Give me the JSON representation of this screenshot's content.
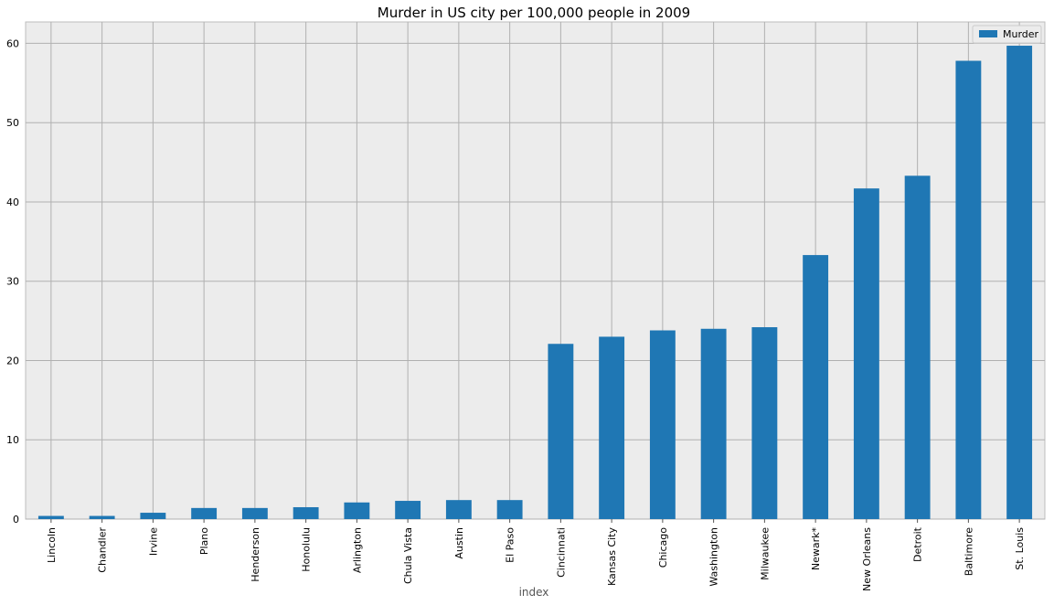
{
  "chart_data": {
    "type": "bar",
    "title": "Murder in US city per 100,000 people in 2009",
    "xlabel": "index",
    "ylabel": "",
    "categories": [
      "Lincoln",
      "Chandler",
      "Irvine",
      "Plano",
      "Henderson",
      "Honolulu",
      "Arlington",
      "Chula Vista",
      "Austin",
      "El Paso",
      "Cincinnati",
      "Kansas City",
      "Chicago",
      "Washington",
      "Milwaukee",
      "Newark*",
      "New Orleans",
      "Detroit",
      "Baltimore",
      "St. Louis"
    ],
    "series": [
      {
        "name": "Murder",
        "color": "#1f77b4",
        "values": [
          0.4,
          0.4,
          0.8,
          1.4,
          1.4,
          1.5,
          2.1,
          2.3,
          2.4,
          2.4,
          22.1,
          23.0,
          23.8,
          24.0,
          24.2,
          33.3,
          41.7,
          43.3,
          57.8,
          59.7
        ]
      }
    ],
    "yticks": [
      0,
      10,
      20,
      30,
      40,
      50,
      60
    ],
    "ylim": [
      0,
      62.7
    ],
    "grid": true,
    "legend_position": "top-right",
    "background_color": "#ececec",
    "grid_color": "#b0b0b0"
  }
}
